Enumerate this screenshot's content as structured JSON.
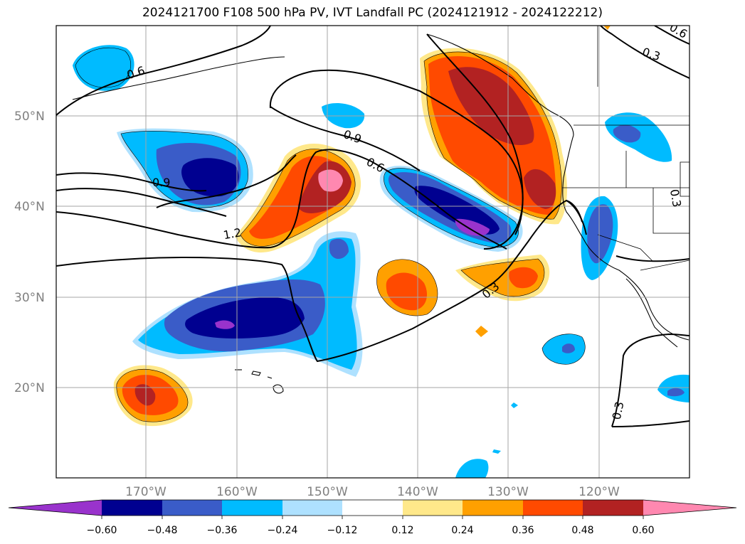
{
  "title": "2024121700 F108 500 hPa PV, IVT Landfall PC (2024121912 - 2024122212)",
  "colors": {
    "n060": "#9933cc",
    "n048": "#000090",
    "n036": "#3a5cc8",
    "n024": "#00bbff",
    "n012": "#aee1ff",
    "zero": "#ffffff",
    "p012": "#ffe88a",
    "p024": "#ffa000",
    "p036": "#ff4a00",
    "p048": "#b22222",
    "p060": "#ff88b0"
  },
  "chart_data": {
    "type": "contour-map",
    "title": "2024121700 F108 500 hPa PV, IVT Landfall PC (2024121912 - 2024122212)",
    "lon_range": [
      -180,
      -110
    ],
    "lat_range": [
      10,
      60
    ],
    "lat_ticks": [
      "20°N",
      "30°N",
      "40°N",
      "50°N"
    ],
    "lon_ticks": [
      "170°W",
      "160°W",
      "150°W",
      "140°W",
      "130°W",
      "120°W"
    ],
    "colorbar": {
      "levels": [
        "−0.60",
        "−0.48",
        "−0.36",
        "−0.24",
        "−0.12",
        "0.12",
        "0.24",
        "0.36",
        "0.48",
        "0.60"
      ],
      "extend": "both"
    },
    "contour_labels": [
      "0.6",
      "0.9",
      "0.9",
      "0.6",
      "1.2",
      "0.3",
      "0.3",
      "0.3",
      "0.3",
      "0.6"
    ]
  }
}
